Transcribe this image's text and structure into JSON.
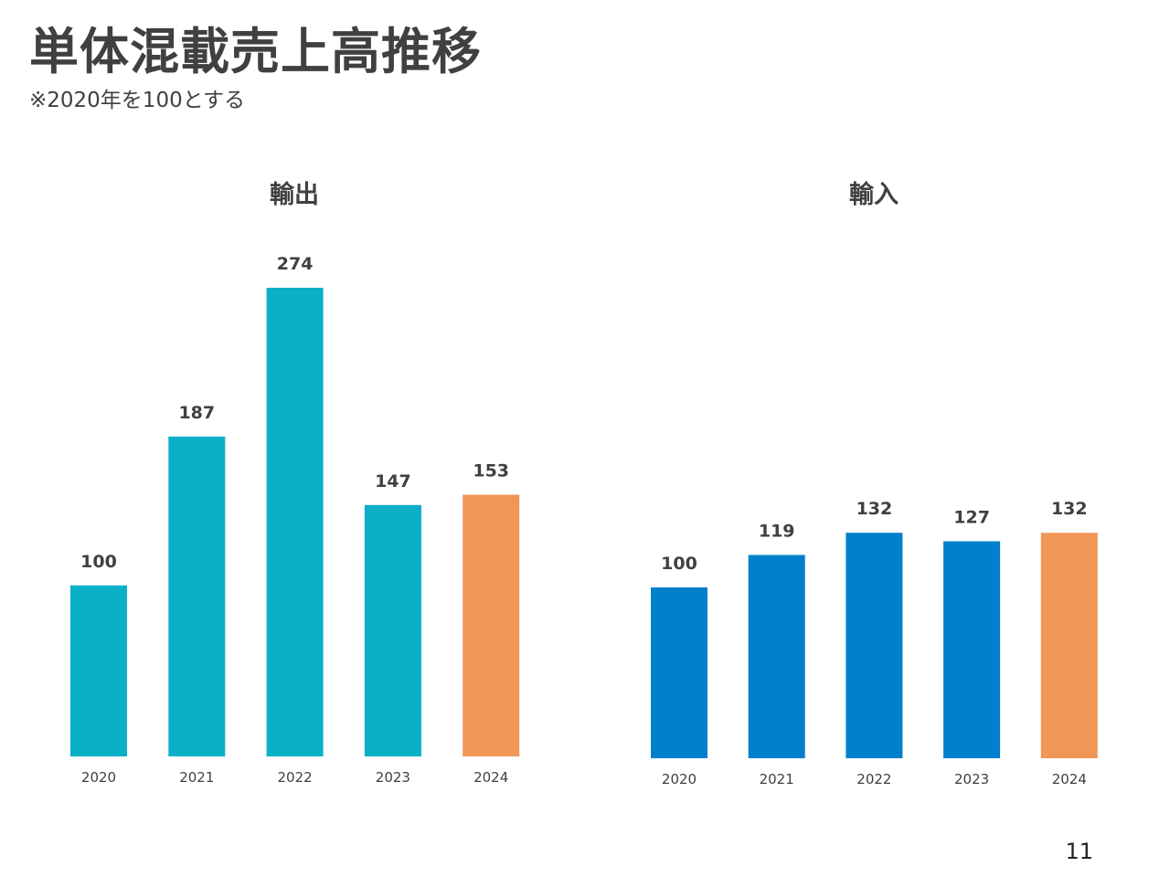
{
  "page": {
    "title": "単体混載売上高推移",
    "subtitle": "※2020年を100とする",
    "page_number": "11"
  },
  "colors": {
    "export_bar": "#0AAFC8",
    "import_bar": "#0080CC",
    "highlight_bar": "#F09657"
  },
  "chart_data": [
    {
      "type": "bar",
      "title": "輸出",
      "categories": [
        "2020",
        "2021",
        "2022",
        "2023",
        "2024"
      ],
      "values": [
        100,
        187,
        274,
        147,
        153
      ],
      "xlabel": "",
      "ylabel": "",
      "ylim": [
        0,
        274
      ],
      "grid": false,
      "highlight_category": "2024"
    },
    {
      "type": "bar",
      "title": "輸入",
      "categories": [
        "2020",
        "2021",
        "2022",
        "2023",
        "2024"
      ],
      "values": [
        100,
        119,
        132,
        127,
        132
      ],
      "xlabel": "",
      "ylabel": "",
      "ylim": [
        0,
        274
      ],
      "grid": false,
      "highlight_category": "2024"
    }
  ]
}
